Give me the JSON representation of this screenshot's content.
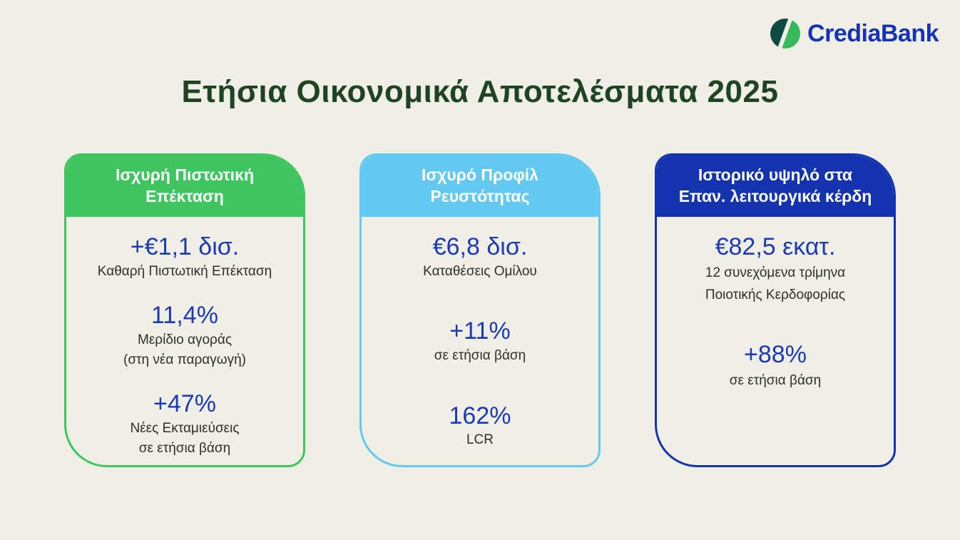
{
  "colors": {
    "background": "#f0efe6",
    "title": "#1e4424",
    "value": "#1c3ab3",
    "label": "#2e2e2e",
    "logo_text": "#1534b5",
    "logo_teal": "#0d4b41",
    "logo_green": "#36b95b"
  },
  "logo": {
    "text": "CrediaBank"
  },
  "title": "Ετήσια Οικονομικά Αποτελέσματα 2025",
  "cards": [
    {
      "accent": "#3fc55f",
      "header": "Ισχυρή Πιστωτική\nΕπέκταση",
      "stats": [
        {
          "value": "+€1,1 δισ.",
          "labels": [
            "Καθαρή Πιστωτική Επέκταση"
          ]
        },
        {
          "value": "11,4%",
          "labels": [
            "Μερίδιο αγοράς",
            "(στη νέα παραγωγή)"
          ]
        },
        {
          "value": "+47%",
          "labels": [
            "Νέες Εκταμιεύσεις",
            "σε ετήσια βάση"
          ]
        }
      ]
    },
    {
      "accent": "#63c9f1",
      "header": "Ισχυρό Προφίλ\nΡευστότητας",
      "stats": [
        {
          "value": "€6,8 δισ.",
          "labels": [
            "Καταθέσεις Ομίλου"
          ]
        },
        {
          "value": "+11%",
          "labels": [
            "σε ετήσια βάση"
          ]
        },
        {
          "value": "162%",
          "labels": [
            "LCR"
          ]
        }
      ]
    },
    {
      "accent": "#1334ae",
      "header": "Ιστορικό υψηλό στα\nΕπαν. λειτουργικά κέρδη",
      "stats": [
        {
          "value": "€82,5 εκατ.",
          "labels": [
            "12 συνεχόμενα τρίμηνα",
            "Ποιοτικής Κερδοφορίας"
          ]
        },
        {
          "value": "+88%",
          "labels": [
            "σε ετήσια βάση"
          ]
        }
      ]
    }
  ]
}
